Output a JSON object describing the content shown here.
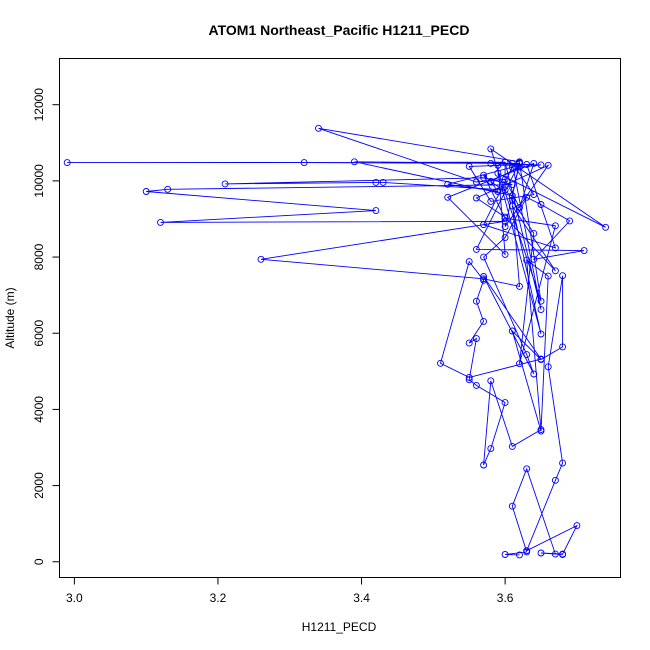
{
  "chart_data": {
    "type": "line",
    "title": "ATOM1 Northeast_Pacific H1211_PECD",
    "xlabel": "H1211_PECD",
    "ylabel": "Altitude (m)",
    "xlim": [
      2.98,
      3.76
    ],
    "ylim": [
      -400,
      13200
    ],
    "x_ticks": [
      3.0,
      3.2,
      3.4,
      3.6
    ],
    "x_tick_labels": [
      "3.0",
      "3.2",
      "3.4",
      "3.6"
    ],
    "y_ticks": [
      0,
      2000,
      4000,
      6000,
      8000,
      10000,
      12000
    ],
    "y_tick_labels": [
      "0",
      "2000",
      "4000",
      "6000",
      "8000",
      "10000",
      "12000"
    ],
    "colors": {
      "series": "#0000ff",
      "axis": "#000000",
      "background": "#ffffff"
    },
    "series": [
      {
        "points": [
          [
            3.62,
            180
          ],
          [
            3.6,
            190
          ],
          [
            3.63,
            260
          ],
          [
            3.61,
            1460
          ],
          [
            3.63,
            2440
          ],
          [
            3.67,
            200
          ],
          [
            3.68,
            190
          ],
          [
            3.65,
            230
          ],
          [
            3.68,
            200
          ],
          [
            3.7,
            950
          ],
          [
            3.63,
            290
          ],
          [
            3.67,
            2140
          ],
          [
            3.68,
            2590
          ],
          [
            3.66,
            5120
          ],
          [
            3.68,
            7510
          ],
          [
            3.68,
            5640
          ],
          [
            3.65,
            5310
          ],
          [
            3.61,
            6060
          ],
          [
            3.65,
            3430
          ],
          [
            3.66,
            7500
          ],
          [
            3.63,
            7920
          ],
          [
            3.65,
            3470
          ],
          [
            3.61,
            3030
          ],
          [
            3.58,
            4750
          ],
          [
            3.57,
            2540
          ],
          [
            3.58,
            2970
          ],
          [
            3.6,
            4180
          ],
          [
            3.56,
            4630
          ],
          [
            3.55,
            4780
          ],
          [
            3.56,
            5860
          ],
          [
            3.55,
            5740
          ],
          [
            3.57,
            6310
          ],
          [
            3.56,
            6840
          ],
          [
            3.57,
            7390
          ],
          [
            3.55,
            7880
          ],
          [
            3.51,
            5210
          ],
          [
            3.55,
            4840
          ],
          [
            3.65,
            5320
          ],
          [
            3.57,
            7490
          ],
          [
            3.64,
            4930
          ],
          [
            3.63,
            5440
          ],
          [
            3.57,
            8000
          ],
          [
            3.6,
            8510
          ],
          [
            3.63,
            9570
          ],
          [
            3.65,
            9380
          ],
          [
            3.69,
            8950
          ],
          [
            3.64,
            7940
          ],
          [
            3.71,
            8170
          ],
          [
            3.56,
            8200
          ],
          [
            3.62,
            10480
          ],
          [
            3.65,
            6840
          ],
          [
            3.58,
            10840
          ],
          [
            3.74,
            8780
          ],
          [
            3.59,
            10200
          ],
          [
            3.65,
            5980
          ],
          [
            3.61,
            9340
          ],
          [
            3.67,
            7640
          ],
          [
            3.6,
            9050
          ],
          [
            3.56,
            9550
          ],
          [
            3.66,
            10410
          ],
          [
            3.6,
            8800
          ],
          [
            3.62,
            10460
          ],
          [
            3.61,
            9600
          ],
          [
            3.58,
            9980
          ],
          [
            3.59,
            9720
          ],
          [
            3.52,
            9910
          ],
          [
            3.61,
            10360
          ],
          [
            3.57,
            8850
          ],
          [
            3.67,
            8240
          ],
          [
            3.63,
            10430
          ],
          [
            3.55,
            10380
          ],
          [
            3.58,
            9460
          ],
          [
            3.64,
            9640
          ],
          [
            3.61,
            10460
          ],
          [
            3.65,
            6620
          ],
          [
            3.6,
            10490
          ],
          [
            3.59,
            10410
          ],
          [
            3.6,
            8070
          ],
          [
            3.52,
            9570
          ],
          [
            3.64,
            10460
          ],
          [
            3.62,
            9300
          ],
          [
            3.6,
            10040
          ],
          [
            3.56,
            9970
          ],
          [
            3.34,
            11380
          ],
          [
            3.62,
            10500
          ],
          [
            3.61,
            9610
          ],
          [
            3.39,
            10500
          ],
          [
            3.62,
            10460
          ],
          [
            3.32,
            10480
          ],
          [
            2.99,
            10480
          ],
          [
            3.6,
            10490
          ],
          [
            3.6,
            9760
          ],
          [
            3.43,
            9960
          ],
          [
            3.42,
            9960
          ],
          [
            3.21,
            9920
          ],
          [
            3.57,
            10080
          ],
          [
            3.61,
            9900
          ],
          [
            3.13,
            9780
          ],
          [
            3.1,
            9720
          ],
          [
            3.42,
            9220
          ],
          [
            3.12,
            8910
          ],
          [
            3.6,
            8940
          ],
          [
            3.26,
            7940
          ],
          [
            3.57,
            7430
          ],
          [
            3.62,
            7230
          ],
          [
            3.61,
            9500
          ],
          [
            3.64,
            8620
          ],
          [
            3.62,
            5200
          ],
          [
            3.67,
            8820
          ],
          [
            3.6,
            9020
          ],
          [
            3.57,
            10150
          ],
          [
            3.58,
            9990
          ],
          [
            3.62,
            10360
          ],
          [
            3.65,
            10420
          ],
          [
            3.58,
            10460
          ]
        ]
      }
    ]
  }
}
